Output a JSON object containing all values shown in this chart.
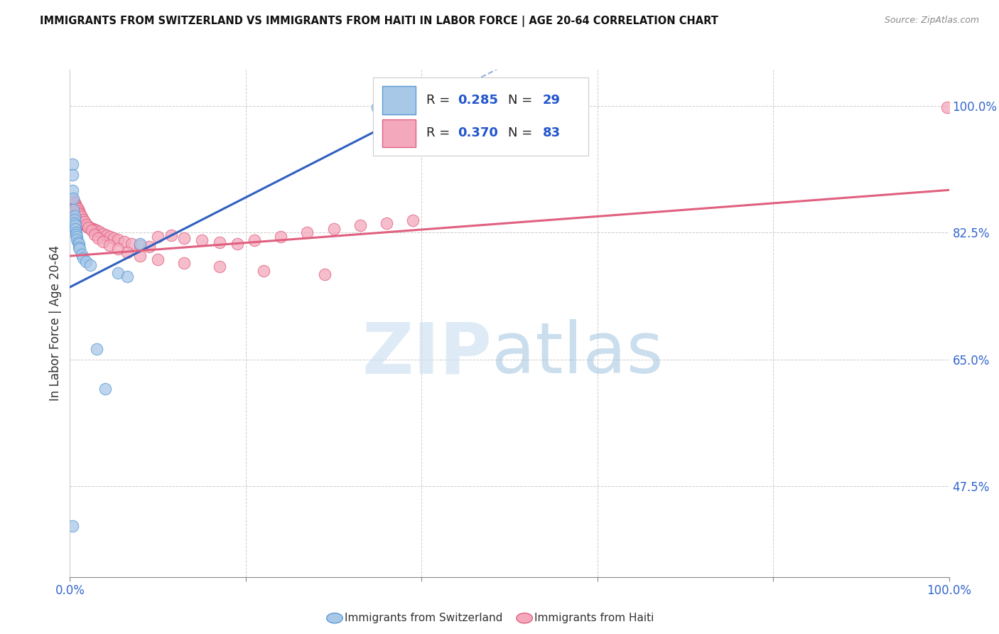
{
  "title": "IMMIGRANTS FROM SWITZERLAND VS IMMIGRANTS FROM HAITI IN LABOR FORCE | AGE 20-64 CORRELATION CHART",
  "source": "Source: ZipAtlas.com",
  "ylabel": "In Labor Force | Age 20-64",
  "right_yticks": [
    0.475,
    0.65,
    0.825,
    1.0
  ],
  "right_yticklabels": [
    "47.5%",
    "65.0%",
    "82.5%",
    "100.0%"
  ],
  "xlim": [
    0.0,
    1.0
  ],
  "ylim": [
    0.35,
    1.05
  ],
  "switzerland_color": "#a8c8e8",
  "haiti_color": "#f4a8bc",
  "switzerland_edge": "#5b9bd5",
  "haiti_edge": "#e06080",
  "legend_R_switzerland": "0.285",
  "legend_N_switzerland": "29",
  "legend_R_haiti": "0.370",
  "legend_N_haiti": "83",
  "regression_color_switzerland": "#3060c0",
  "regression_color_haiti": "#e06080",
  "sw_line_x": [
    0.0,
    0.42
  ],
  "sw_line_y": [
    0.75,
    1.01
  ],
  "ht_line_x": [
    0.0,
    1.0
  ],
  "ht_line_y": [
    0.793,
    0.884
  ],
  "switzerland_x": [
    0.003,
    0.003,
    0.003,
    0.004,
    0.004,
    0.005,
    0.005,
    0.005,
    0.006,
    0.006,
    0.007,
    0.007,
    0.008,
    0.008,
    0.009,
    0.01,
    0.01,
    0.011,
    0.013,
    0.015,
    0.018,
    0.023,
    0.03,
    0.04,
    0.055,
    0.065,
    0.08,
    0.35,
    0.003
  ],
  "switzerland_y": [
    0.92,
    0.905,
    0.883,
    0.873,
    0.857,
    0.848,
    0.843,
    0.838,
    0.835,
    0.83,
    0.825,
    0.823,
    0.82,
    0.816,
    0.812,
    0.81,
    0.805,
    0.803,
    0.795,
    0.79,
    0.785,
    0.78,
    0.665,
    0.61,
    0.77,
    0.765,
    0.81,
    0.998,
    0.42
  ],
  "haiti_x": [
    0.003,
    0.004,
    0.004,
    0.005,
    0.005,
    0.006,
    0.006,
    0.007,
    0.007,
    0.008,
    0.008,
    0.009,
    0.009,
    0.01,
    0.01,
    0.011,
    0.012,
    0.012,
    0.013,
    0.014,
    0.015,
    0.016,
    0.017,
    0.018,
    0.019,
    0.02,
    0.022,
    0.024,
    0.026,
    0.028,
    0.03,
    0.034,
    0.038,
    0.042,
    0.046,
    0.05,
    0.055,
    0.062,
    0.07,
    0.08,
    0.09,
    0.1,
    0.115,
    0.13,
    0.15,
    0.17,
    0.19,
    0.21,
    0.24,
    0.27,
    0.3,
    0.33,
    0.36,
    0.39,
    0.003,
    0.004,
    0.005,
    0.006,
    0.007,
    0.008,
    0.009,
    0.01,
    0.011,
    0.012,
    0.013,
    0.015,
    0.017,
    0.019,
    0.021,
    0.025,
    0.028,
    0.032,
    0.038,
    0.045,
    0.055,
    0.065,
    0.08,
    0.1,
    0.13,
    0.17,
    0.22,
    0.29,
    0.998
  ],
  "haiti_y": [
    0.865,
    0.862,
    0.86,
    0.858,
    0.856,
    0.854,
    0.852,
    0.851,
    0.85,
    0.848,
    0.847,
    0.846,
    0.845,
    0.844,
    0.843,
    0.842,
    0.841,
    0.84,
    0.839,
    0.838,
    0.838,
    0.837,
    0.836,
    0.835,
    0.834,
    0.833,
    0.832,
    0.831,
    0.83,
    0.829,
    0.828,
    0.826,
    0.824,
    0.822,
    0.82,
    0.818,
    0.816,
    0.813,
    0.81,
    0.808,
    0.806,
    0.82,
    0.822,
    0.818,
    0.815,
    0.812,
    0.81,
    0.815,
    0.82,
    0.825,
    0.83,
    0.835,
    0.838,
    0.842,
    0.872,
    0.869,
    0.867,
    0.865,
    0.862,
    0.86,
    0.858,
    0.855,
    0.852,
    0.85,
    0.847,
    0.843,
    0.84,
    0.836,
    0.832,
    0.828,
    0.823,
    0.818,
    0.813,
    0.808,
    0.803,
    0.798,
    0.793,
    0.788,
    0.783,
    0.778,
    0.773,
    0.768,
    0.998
  ]
}
